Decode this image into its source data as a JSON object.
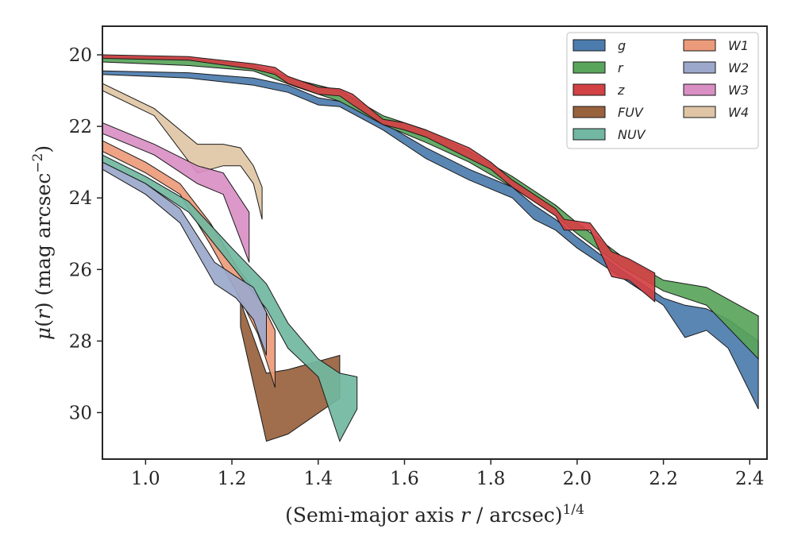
{
  "chart_data": {
    "type": "area",
    "xlabel_parts": [
      "(Semi-major axis ",
      "r",
      " / arcsec)",
      "1/4"
    ],
    "ylabel_parts": [
      "μ",
      "(",
      "r",
      ") (mag arcsec",
      "−2",
      ")"
    ],
    "xlim": [
      0.9,
      2.44
    ],
    "ylim": [
      31.3,
      19.2
    ],
    "xticks": [
      1.0,
      1.2,
      1.4,
      1.6,
      1.8,
      2.0,
      2.2,
      2.4
    ],
    "xtick_labels": [
      "1.0",
      "1.2",
      "1.4",
      "1.6",
      "1.8",
      "2.0",
      "2.2",
      "2.4"
    ],
    "yticks": [
      20,
      22,
      24,
      26,
      28,
      30
    ],
    "ytick_labels": [
      "20",
      "22",
      "24",
      "26",
      "28",
      "30"
    ],
    "legend_position": "top-right",
    "legend_columns": 2,
    "series": [
      {
        "name": "W4",
        "color": "#dfc5a5",
        "upper": [
          [
            0.9,
            20.8
          ],
          [
            1.02,
            21.5
          ],
          [
            1.12,
            22.5
          ],
          [
            1.18,
            22.5
          ],
          [
            1.22,
            22.6
          ],
          [
            1.25,
            23.1
          ],
          [
            1.27,
            23.7
          ]
        ],
        "lower": [
          [
            0.9,
            21.0
          ],
          [
            1.02,
            21.7
          ],
          [
            1.12,
            23.3
          ],
          [
            1.18,
            23.1
          ],
          [
            1.22,
            23.1
          ],
          [
            1.25,
            23.6
          ],
          [
            1.27,
            24.6
          ]
        ]
      },
      {
        "name": "W3",
        "color": "#d98fc4",
        "upper": [
          [
            0.9,
            21.9
          ],
          [
            1.02,
            22.5
          ],
          [
            1.12,
            23.1
          ],
          [
            1.18,
            23.3
          ],
          [
            1.24,
            24.4
          ]
        ],
        "lower": [
          [
            0.9,
            22.2
          ],
          [
            1.02,
            22.8
          ],
          [
            1.12,
            23.6
          ],
          [
            1.18,
            23.9
          ],
          [
            1.24,
            25.8
          ]
        ]
      },
      {
        "name": "FUV",
        "color": "#98623d",
        "upper": [
          [
            1.22,
            26.9
          ],
          [
            1.28,
            28.9
          ],
          [
            1.33,
            28.8
          ],
          [
            1.45,
            28.4
          ]
        ],
        "lower": [
          [
            1.22,
            27.6
          ],
          [
            1.28,
            30.8
          ],
          [
            1.33,
            30.6
          ],
          [
            1.45,
            29.6
          ]
        ]
      },
      {
        "name": "W1",
        "color": "#ec9b7a",
        "upper": [
          [
            0.9,
            22.4
          ],
          [
            1.0,
            23.0
          ],
          [
            1.08,
            23.6
          ],
          [
            1.15,
            24.7
          ],
          [
            1.21,
            25.9
          ],
          [
            1.26,
            26.7
          ],
          [
            1.3,
            27.7
          ]
        ],
        "lower": [
          [
            0.9,
            22.7
          ],
          [
            1.0,
            23.3
          ],
          [
            1.08,
            23.9
          ],
          [
            1.15,
            25.3
          ],
          [
            1.21,
            26.6
          ],
          [
            1.26,
            27.8
          ],
          [
            1.3,
            29.3
          ]
        ]
      },
      {
        "name": "NUV",
        "color": "#71b7a1",
        "upper": [
          [
            0.9,
            22.8
          ],
          [
            1.0,
            23.4
          ],
          [
            1.1,
            24.1
          ],
          [
            1.2,
            25.4
          ],
          [
            1.28,
            26.4
          ],
          [
            1.33,
            27.5
          ],
          [
            1.4,
            28.5
          ],
          [
            1.45,
            28.9
          ],
          [
            1.49,
            29.0
          ]
        ],
        "lower": [
          [
            0.9,
            23.0
          ],
          [
            1.0,
            23.6
          ],
          [
            1.1,
            24.4
          ],
          [
            1.2,
            25.9
          ],
          [
            1.28,
            27.1
          ],
          [
            1.33,
            28.2
          ],
          [
            1.4,
            29.0
          ],
          [
            1.45,
            30.8
          ],
          [
            1.49,
            29.9
          ]
        ]
      },
      {
        "name": "W2",
        "color": "#9ba8cb",
        "upper": [
          [
            0.9,
            23.0
          ],
          [
            1.0,
            23.6
          ],
          [
            1.08,
            24.3
          ],
          [
            1.16,
            25.8
          ],
          [
            1.21,
            26.2
          ],
          [
            1.25,
            26.5
          ],
          [
            1.28,
            27.2
          ]
        ],
        "lower": [
          [
            0.9,
            23.2
          ],
          [
            1.0,
            23.9
          ],
          [
            1.08,
            24.7
          ],
          [
            1.16,
            26.4
          ],
          [
            1.21,
            26.8
          ],
          [
            1.25,
            27.4
          ],
          [
            1.28,
            28.4
          ]
        ]
      },
      {
        "name": "g",
        "color": "#4c7cae",
        "upper": [
          [
            0.9,
            20.45
          ],
          [
            1.1,
            20.5
          ],
          [
            1.25,
            20.65
          ],
          [
            1.33,
            20.85
          ],
          [
            1.4,
            21.2
          ],
          [
            1.45,
            21.3
          ],
          [
            1.55,
            21.9
          ],
          [
            1.65,
            22.6
          ],
          [
            1.75,
            23.2
          ],
          [
            1.85,
            23.7
          ],
          [
            1.9,
            24.2
          ],
          [
            1.95,
            24.6
          ],
          [
            2.0,
            25.1
          ],
          [
            2.1,
            26.0
          ],
          [
            2.2,
            26.8
          ],
          [
            2.25,
            27.0
          ],
          [
            2.3,
            27.1
          ],
          [
            2.35,
            27.4
          ],
          [
            2.42,
            28.0
          ]
        ],
        "lower": [
          [
            0.9,
            20.55
          ],
          [
            1.1,
            20.65
          ],
          [
            1.25,
            20.85
          ],
          [
            1.33,
            21.05
          ],
          [
            1.4,
            21.4
          ],
          [
            1.45,
            21.45
          ],
          [
            1.55,
            22.1
          ],
          [
            1.65,
            22.9
          ],
          [
            1.75,
            23.5
          ],
          [
            1.85,
            24.0
          ],
          [
            1.9,
            24.6
          ],
          [
            1.95,
            24.9
          ],
          [
            2.0,
            25.4
          ],
          [
            2.1,
            26.2
          ],
          [
            2.2,
            27.0
          ],
          [
            2.25,
            27.9
          ],
          [
            2.3,
            27.7
          ],
          [
            2.35,
            28.2
          ],
          [
            2.42,
            29.9
          ]
        ]
      },
      {
        "name": "r",
        "color": "#59a55b",
        "upper": [
          [
            0.9,
            20.05
          ],
          [
            1.1,
            20.1
          ],
          [
            1.25,
            20.3
          ],
          [
            1.35,
            20.7
          ],
          [
            1.45,
            21.0
          ],
          [
            1.55,
            21.7
          ],
          [
            1.65,
            22.1
          ],
          [
            1.75,
            22.7
          ],
          [
            1.85,
            23.4
          ],
          [
            1.95,
            24.2
          ],
          [
            2.0,
            24.7
          ],
          [
            2.1,
            25.6
          ],
          [
            2.2,
            26.3
          ],
          [
            2.3,
            26.5
          ],
          [
            2.42,
            27.3
          ]
        ],
        "lower": [
          [
            0.9,
            20.2
          ],
          [
            1.1,
            20.3
          ],
          [
            1.25,
            20.45
          ],
          [
            1.35,
            20.9
          ],
          [
            1.45,
            21.3
          ],
          [
            1.55,
            21.95
          ],
          [
            1.65,
            22.45
          ],
          [
            1.75,
            23.0
          ],
          [
            1.85,
            23.7
          ],
          [
            1.95,
            24.5
          ],
          [
            2.0,
            25.0
          ],
          [
            2.1,
            25.9
          ],
          [
            2.2,
            26.6
          ],
          [
            2.3,
            27.0
          ],
          [
            2.42,
            28.5
          ]
        ]
      },
      {
        "name": "z",
        "color": "#d24144",
        "upper": [
          [
            0.9,
            20.0
          ],
          [
            1.1,
            20.05
          ],
          [
            1.25,
            20.25
          ],
          [
            1.3,
            20.35
          ],
          [
            1.33,
            20.6
          ],
          [
            1.4,
            20.9
          ],
          [
            1.45,
            20.95
          ],
          [
            1.48,
            21.1
          ],
          [
            1.55,
            21.8
          ],
          [
            1.6,
            21.9
          ],
          [
            1.65,
            22.1
          ],
          [
            1.75,
            22.6
          ],
          [
            1.8,
            23.0
          ],
          [
            1.85,
            23.5
          ],
          [
            1.95,
            24.3
          ],
          [
            1.97,
            24.6
          ],
          [
            2.03,
            24.7
          ],
          [
            2.08,
            25.5
          ],
          [
            2.12,
            25.7
          ],
          [
            2.18,
            26.1
          ]
        ],
        "lower": [
          [
            0.9,
            20.1
          ],
          [
            1.1,
            20.15
          ],
          [
            1.25,
            20.4
          ],
          [
            1.3,
            20.55
          ],
          [
            1.33,
            20.8
          ],
          [
            1.4,
            21.1
          ],
          [
            1.45,
            21.15
          ],
          [
            1.48,
            21.4
          ],
          [
            1.55,
            21.95
          ],
          [
            1.6,
            22.1
          ],
          [
            1.65,
            22.3
          ],
          [
            1.75,
            22.9
          ],
          [
            1.8,
            23.2
          ],
          [
            1.85,
            23.7
          ],
          [
            1.95,
            24.5
          ],
          [
            1.97,
            24.9
          ],
          [
            2.03,
            24.9
          ],
          [
            2.08,
            26.2
          ],
          [
            2.12,
            26.3
          ],
          [
            2.18,
            26.9
          ]
        ]
      }
    ],
    "legend_order": [
      "g",
      "r",
      "z",
      "FUV",
      "NUV",
      "W1",
      "W2",
      "W3",
      "W4"
    ]
  }
}
